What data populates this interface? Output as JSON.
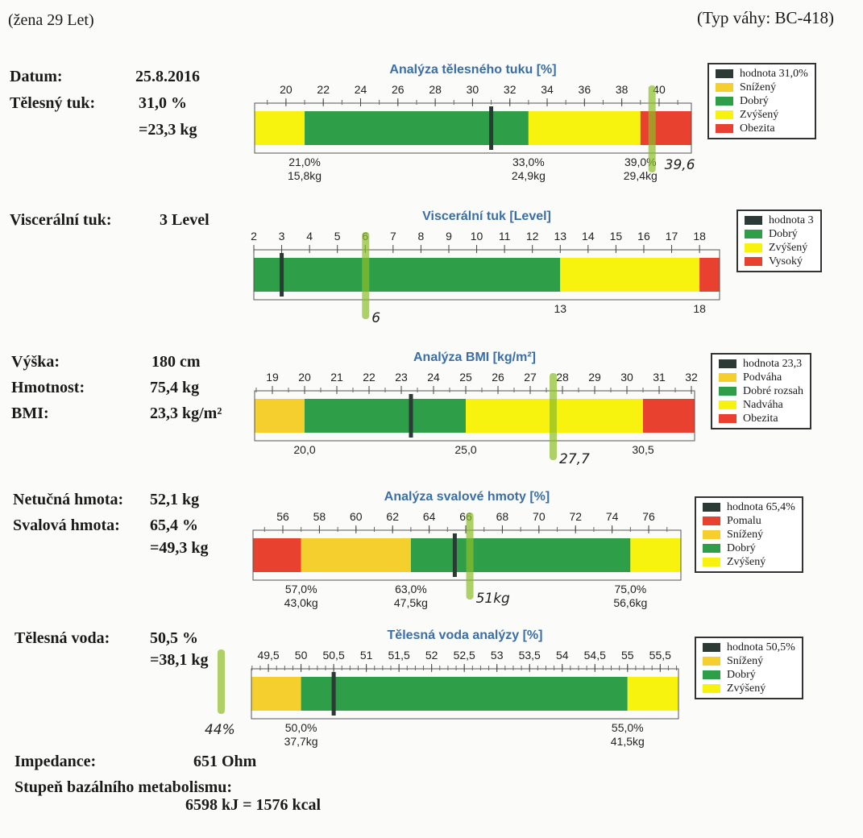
{
  "header": {
    "subject": "(žena 29 Let)",
    "scale_type": "(Typ váhy: BC-418)"
  },
  "fields": {
    "date_label": "Datum:",
    "date": "25.8.2016",
    "fat_label": "Tělesný tuk:",
    "fat_pct": "31,0 %",
    "fat_kg": "=23,3 kg",
    "visceral_label": "Viscerální tuk:",
    "visceral": "3 Level",
    "height_label": "Výška:",
    "height": "180 cm",
    "weight_label": "Hmotnost:",
    "weight": "75,4 kg",
    "bmi_label": "BMI:",
    "bmi": "23,3 kg/m²",
    "lean_label": "Netučná hmota:",
    "lean": "52,1 kg",
    "muscle_label": "Svalová hmota:",
    "muscle_pct": "65,4 %",
    "muscle_kg": "=49,3 kg",
    "water_label": "Tělesná voda:",
    "water_pct": "50,5 %",
    "water_kg": "=38,1 kg",
    "impedance_label": "Impedance:",
    "impedance": "651 Ohm",
    "bmr_label": "Stupeň bazálního metabolismu:",
    "bmr": "6598 kJ = 1576 kcal"
  },
  "colors": {
    "yellow": "#f7f20e",
    "orange": "#f5cf2e",
    "green": "#2f9e48",
    "red": "#e8412f",
    "marker": "#2c3a36",
    "title": "#3a6ea8"
  },
  "chart_data": [
    {
      "type": "bar",
      "title": "Analýza tělesného tuku [%]",
      "xlim": [
        18.32,
        41.73
      ],
      "ticks": [
        "20",
        "22",
        "24",
        "26",
        "28",
        "30",
        "32",
        "34",
        "36",
        "38",
        "40"
      ],
      "tick_values": [
        20,
        22,
        24,
        26,
        28,
        30,
        32,
        34,
        36,
        38,
        40
      ],
      "minor_step": 1,
      "segments": [
        {
          "from": 18.32,
          "to": 21,
          "color": "yellow"
        },
        {
          "from": 21,
          "to": 33,
          "color": "green"
        },
        {
          "from": 33,
          "to": 39,
          "color": "yellow"
        },
        {
          "from": 39,
          "to": 41.73,
          "color": "red"
        }
      ],
      "value": 31.0,
      "boundaries": [
        {
          "at": 21,
          "l1": "21,0%",
          "l2": "15,8kg"
        },
        {
          "at": 33,
          "l1": "33,0%",
          "l2": "24,9kg"
        },
        {
          "at": 39,
          "l1": "39,0%",
          "l2": "29,4kg"
        }
      ],
      "legend": [
        {
          "label": "hodnota 31,0%",
          "color": "marker"
        },
        {
          "label": "Snížený",
          "color": "orange"
        },
        {
          "label": "Dobrý",
          "color": "green"
        },
        {
          "label": "Zvýšený",
          "color": "yellow"
        },
        {
          "label": "Obezita",
          "color": "red"
        }
      ],
      "annotation": {
        "at": 39.6,
        "text": "39,6"
      }
    },
    {
      "type": "bar",
      "title": "Viscerální tuk [Level]",
      "xlim": [
        2,
        18.72
      ],
      "ticks": [
        "2",
        "3",
        "4",
        "5",
        "6",
        "7",
        "8",
        "9",
        "10",
        "11",
        "12",
        "13",
        "14",
        "15",
        "16",
        "17",
        "18"
      ],
      "tick_values": [
        2,
        3,
        4,
        5,
        6,
        7,
        8,
        9,
        10,
        11,
        12,
        13,
        14,
        15,
        16,
        17,
        18
      ],
      "minor_step": 0,
      "segments": [
        {
          "from": 2,
          "to": 13,
          "color": "green"
        },
        {
          "from": 13,
          "to": 18,
          "color": "yellow"
        },
        {
          "from": 18,
          "to": 18.72,
          "color": "red"
        }
      ],
      "value": 3,
      "boundaries": [
        {
          "at": 13,
          "l1": "13",
          "l2": ""
        },
        {
          "at": 18,
          "l1": "18",
          "l2": ""
        }
      ],
      "legend": [
        {
          "label": "hodnota 3",
          "color": "marker"
        },
        {
          "label": "Dobrý",
          "color": "green"
        },
        {
          "label": "Zvýšený",
          "color": "yellow"
        },
        {
          "label": "Vysoký",
          "color": "red"
        }
      ],
      "annotation": {
        "at": 6,
        "text": "6"
      }
    },
    {
      "type": "bar",
      "title": "Analýza BMI [kg/m²]",
      "xlim": [
        18.45,
        32.1
      ],
      "ticks": [
        "19",
        "20",
        "21",
        "22",
        "23",
        "24",
        "25",
        "26",
        "27",
        "28",
        "29",
        "30",
        "31",
        "32"
      ],
      "tick_values": [
        19,
        20,
        21,
        22,
        23,
        24,
        25,
        26,
        27,
        28,
        29,
        30,
        31,
        32
      ],
      "minor_step": 0.5,
      "segments": [
        {
          "from": 18.45,
          "to": 20,
          "color": "orange"
        },
        {
          "from": 20,
          "to": 25,
          "color": "green"
        },
        {
          "from": 25,
          "to": 30.5,
          "color": "yellow"
        },
        {
          "from": 30.5,
          "to": 32.1,
          "color": "red"
        }
      ],
      "value": 23.3,
      "boundaries": [
        {
          "at": 20,
          "l1": "20,0",
          "l2": ""
        },
        {
          "at": 25,
          "l1": "25,0",
          "l2": ""
        },
        {
          "at": 30.5,
          "l1": "30,5",
          "l2": ""
        }
      ],
      "legend": [
        {
          "label": "hodnota 23,3",
          "color": "marker"
        },
        {
          "label": "Podváha",
          "color": "orange"
        },
        {
          "label": "Dobré rozsah",
          "color": "green"
        },
        {
          "label": "Nadváha",
          "color": "yellow"
        },
        {
          "label": "Obezita",
          "color": "red"
        }
      ],
      "annotation": {
        "at": 27.7,
        "text": "27,7"
      }
    },
    {
      "type": "bar",
      "title": "Analýza svalové hmoty [%]",
      "xlim": [
        54.37,
        77.76
      ],
      "ticks": [
        "56",
        "58",
        "60",
        "62",
        "64",
        "66",
        "68",
        "70",
        "72",
        "74",
        "76"
      ],
      "tick_values": [
        56,
        58,
        60,
        62,
        64,
        66,
        68,
        70,
        72,
        74,
        76
      ],
      "minor_step": 1,
      "segments": [
        {
          "from": 54.37,
          "to": 57,
          "color": "red"
        },
        {
          "from": 57,
          "to": 63,
          "color": "orange"
        },
        {
          "from": 63,
          "to": 75,
          "color": "green"
        },
        {
          "from": 75,
          "to": 77.76,
          "color": "yellow"
        }
      ],
      "value": 65.4,
      "boundaries": [
        {
          "at": 57,
          "l1": "57,0%",
          "l2": "43,0kg"
        },
        {
          "at": 63,
          "l1": "63,0%",
          "l2": "47,5kg"
        },
        {
          "at": 75,
          "l1": "75,0%",
          "l2": "56,6kg"
        }
      ],
      "legend": [
        {
          "label": "hodnota 65,4%",
          "color": "marker"
        },
        {
          "label": "Pomalu",
          "color": "red"
        },
        {
          "label": "Snížený",
          "color": "orange"
        },
        {
          "label": "Dobrý",
          "color": "green"
        },
        {
          "label": "Zvýšený",
          "color": "yellow"
        }
      ],
      "annotation": {
        "at": 66.2,
        "text": "51kg"
      }
    },
    {
      "type": "bar",
      "title": "Tělesná voda analýzy [%]",
      "xlim": [
        49.24,
        55.78
      ],
      "ticks": [
        "49,5",
        "50",
        "50,5",
        "51",
        "51,5",
        "52",
        "52,5",
        "53",
        "53,5",
        "54",
        "54,5",
        "55",
        "55,5"
      ],
      "tick_values": [
        49.5,
        50,
        50.5,
        51,
        51.5,
        52,
        52.5,
        53,
        53.5,
        54,
        54.5,
        55,
        55.5
      ],
      "minor_step": 0.125,
      "segments": [
        {
          "from": 49.24,
          "to": 50,
          "color": "orange"
        },
        {
          "from": 50,
          "to": 55,
          "color": "green"
        },
        {
          "from": 55,
          "to": 55.78,
          "color": "yellow"
        }
      ],
      "value": 50.5,
      "boundaries": [
        {
          "at": 50,
          "l1": "50,0%",
          "l2": "37,7kg"
        },
        {
          "at": 55,
          "l1": "55,0%",
          "l2": "41,5kg"
        }
      ],
      "legend": [
        {
          "label": "hodnota 50,5%",
          "color": "marker"
        },
        {
          "label": "Snížený",
          "color": "orange"
        },
        {
          "label": "Dobrý",
          "color": "green"
        },
        {
          "label": "Zvýšený",
          "color": "yellow"
        }
      ],
      "annotation": null
    }
  ],
  "side_note": "44%"
}
